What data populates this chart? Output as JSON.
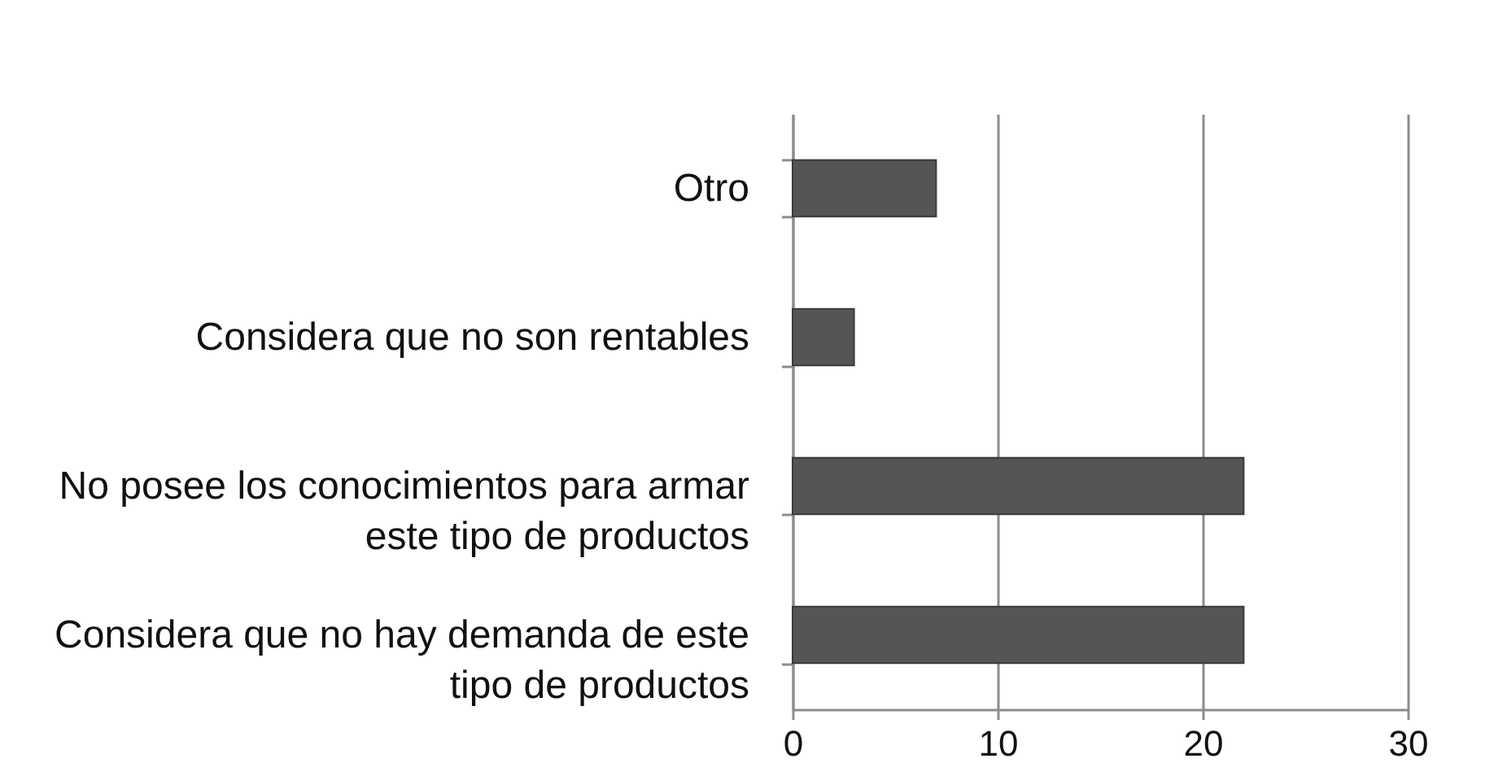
{
  "chart_data": {
    "type": "bar",
    "orientation": "horizontal",
    "categories": [
      "Otro",
      "Considera que no son rentables",
      "No posee los conocimientos para armar este tipo de productos",
      "Considera que no hay demanda de este tipo de productos"
    ],
    "values": [
      7,
      3,
      22,
      22
    ],
    "color": "#555555",
    "xlim": [
      0,
      30
    ],
    "xticks": [
      0,
      10,
      20,
      30
    ],
    "grid": "x"
  }
}
